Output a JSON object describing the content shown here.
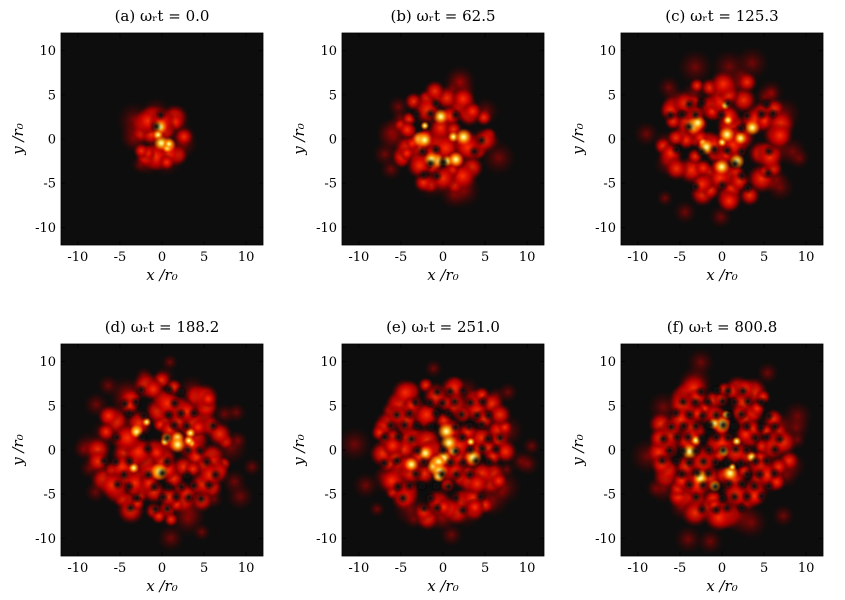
{
  "figure": {
    "xlabel": "x /r₀",
    "ylabel": "y /r₀",
    "background_color": "#0d0d0d",
    "colormap": [
      "#0d0d0d",
      "#5a0000",
      "#c80000",
      "#ff3000",
      "#ff9000",
      "#ffe050",
      "#ffffc0"
    ]
  },
  "chart_data": [
    {
      "type": "heatmap",
      "title": "(a) ωᵣt = 0.0",
      "xlim": [
        -12,
        12
      ],
      "ylim": [
        -12,
        12
      ],
      "xticks": [
        -10,
        -5,
        0,
        5,
        10
      ],
      "yticks": [
        -10,
        -5,
        0,
        5,
        10
      ],
      "cloud_radius": 3.5,
      "vortex_count": 4
    },
    {
      "type": "heatmap",
      "title": "(b) ωᵣt = 62.5",
      "xlim": [
        -12,
        12
      ],
      "ylim": [
        -12,
        12
      ],
      "xticks": [
        -10,
        -5,
        0,
        5,
        10
      ],
      "yticks": [
        -10,
        -5,
        0,
        5,
        10
      ],
      "cloud_radius": 6.5,
      "vortex_count": 12
    },
    {
      "type": "heatmap",
      "title": "(c) ωᵣt = 125.3",
      "xlim": [
        -12,
        12
      ],
      "ylim": [
        -12,
        12
      ],
      "xticks": [
        -10,
        -5,
        0,
        5,
        10
      ],
      "yticks": [
        -10,
        -5,
        0,
        5,
        10
      ],
      "cloud_radius": 8.5,
      "vortex_count": 25
    },
    {
      "type": "heatmap",
      "title": "(d) ωᵣt = 188.2",
      "xlim": [
        -12,
        12
      ],
      "ylim": [
        -12,
        12
      ],
      "xticks": [
        -10,
        -5,
        0,
        5,
        10
      ],
      "yticks": [
        -10,
        -5,
        0,
        5,
        10
      ],
      "cloud_radius": 9.5,
      "vortex_count": 45
    },
    {
      "type": "heatmap",
      "title": "(e) ωᵣt = 251.0",
      "xlim": [
        -12,
        12
      ],
      "ylim": [
        -12,
        12
      ],
      "xticks": [
        -10,
        -5,
        0,
        5,
        10
      ],
      "yticks": [
        -10,
        -5,
        0,
        5,
        10
      ],
      "cloud_radius": 9.5,
      "vortex_count": 60
    },
    {
      "type": "heatmap",
      "title": "(f) ωᵣt = 800.8",
      "xlim": [
        -12,
        12
      ],
      "ylim": [
        -12,
        12
      ],
      "xticks": [
        -10,
        -5,
        0,
        5,
        10
      ],
      "yticks": [
        -10,
        -5,
        0,
        5,
        10
      ],
      "cloud_radius": 9.5,
      "vortex_count": 75
    }
  ]
}
